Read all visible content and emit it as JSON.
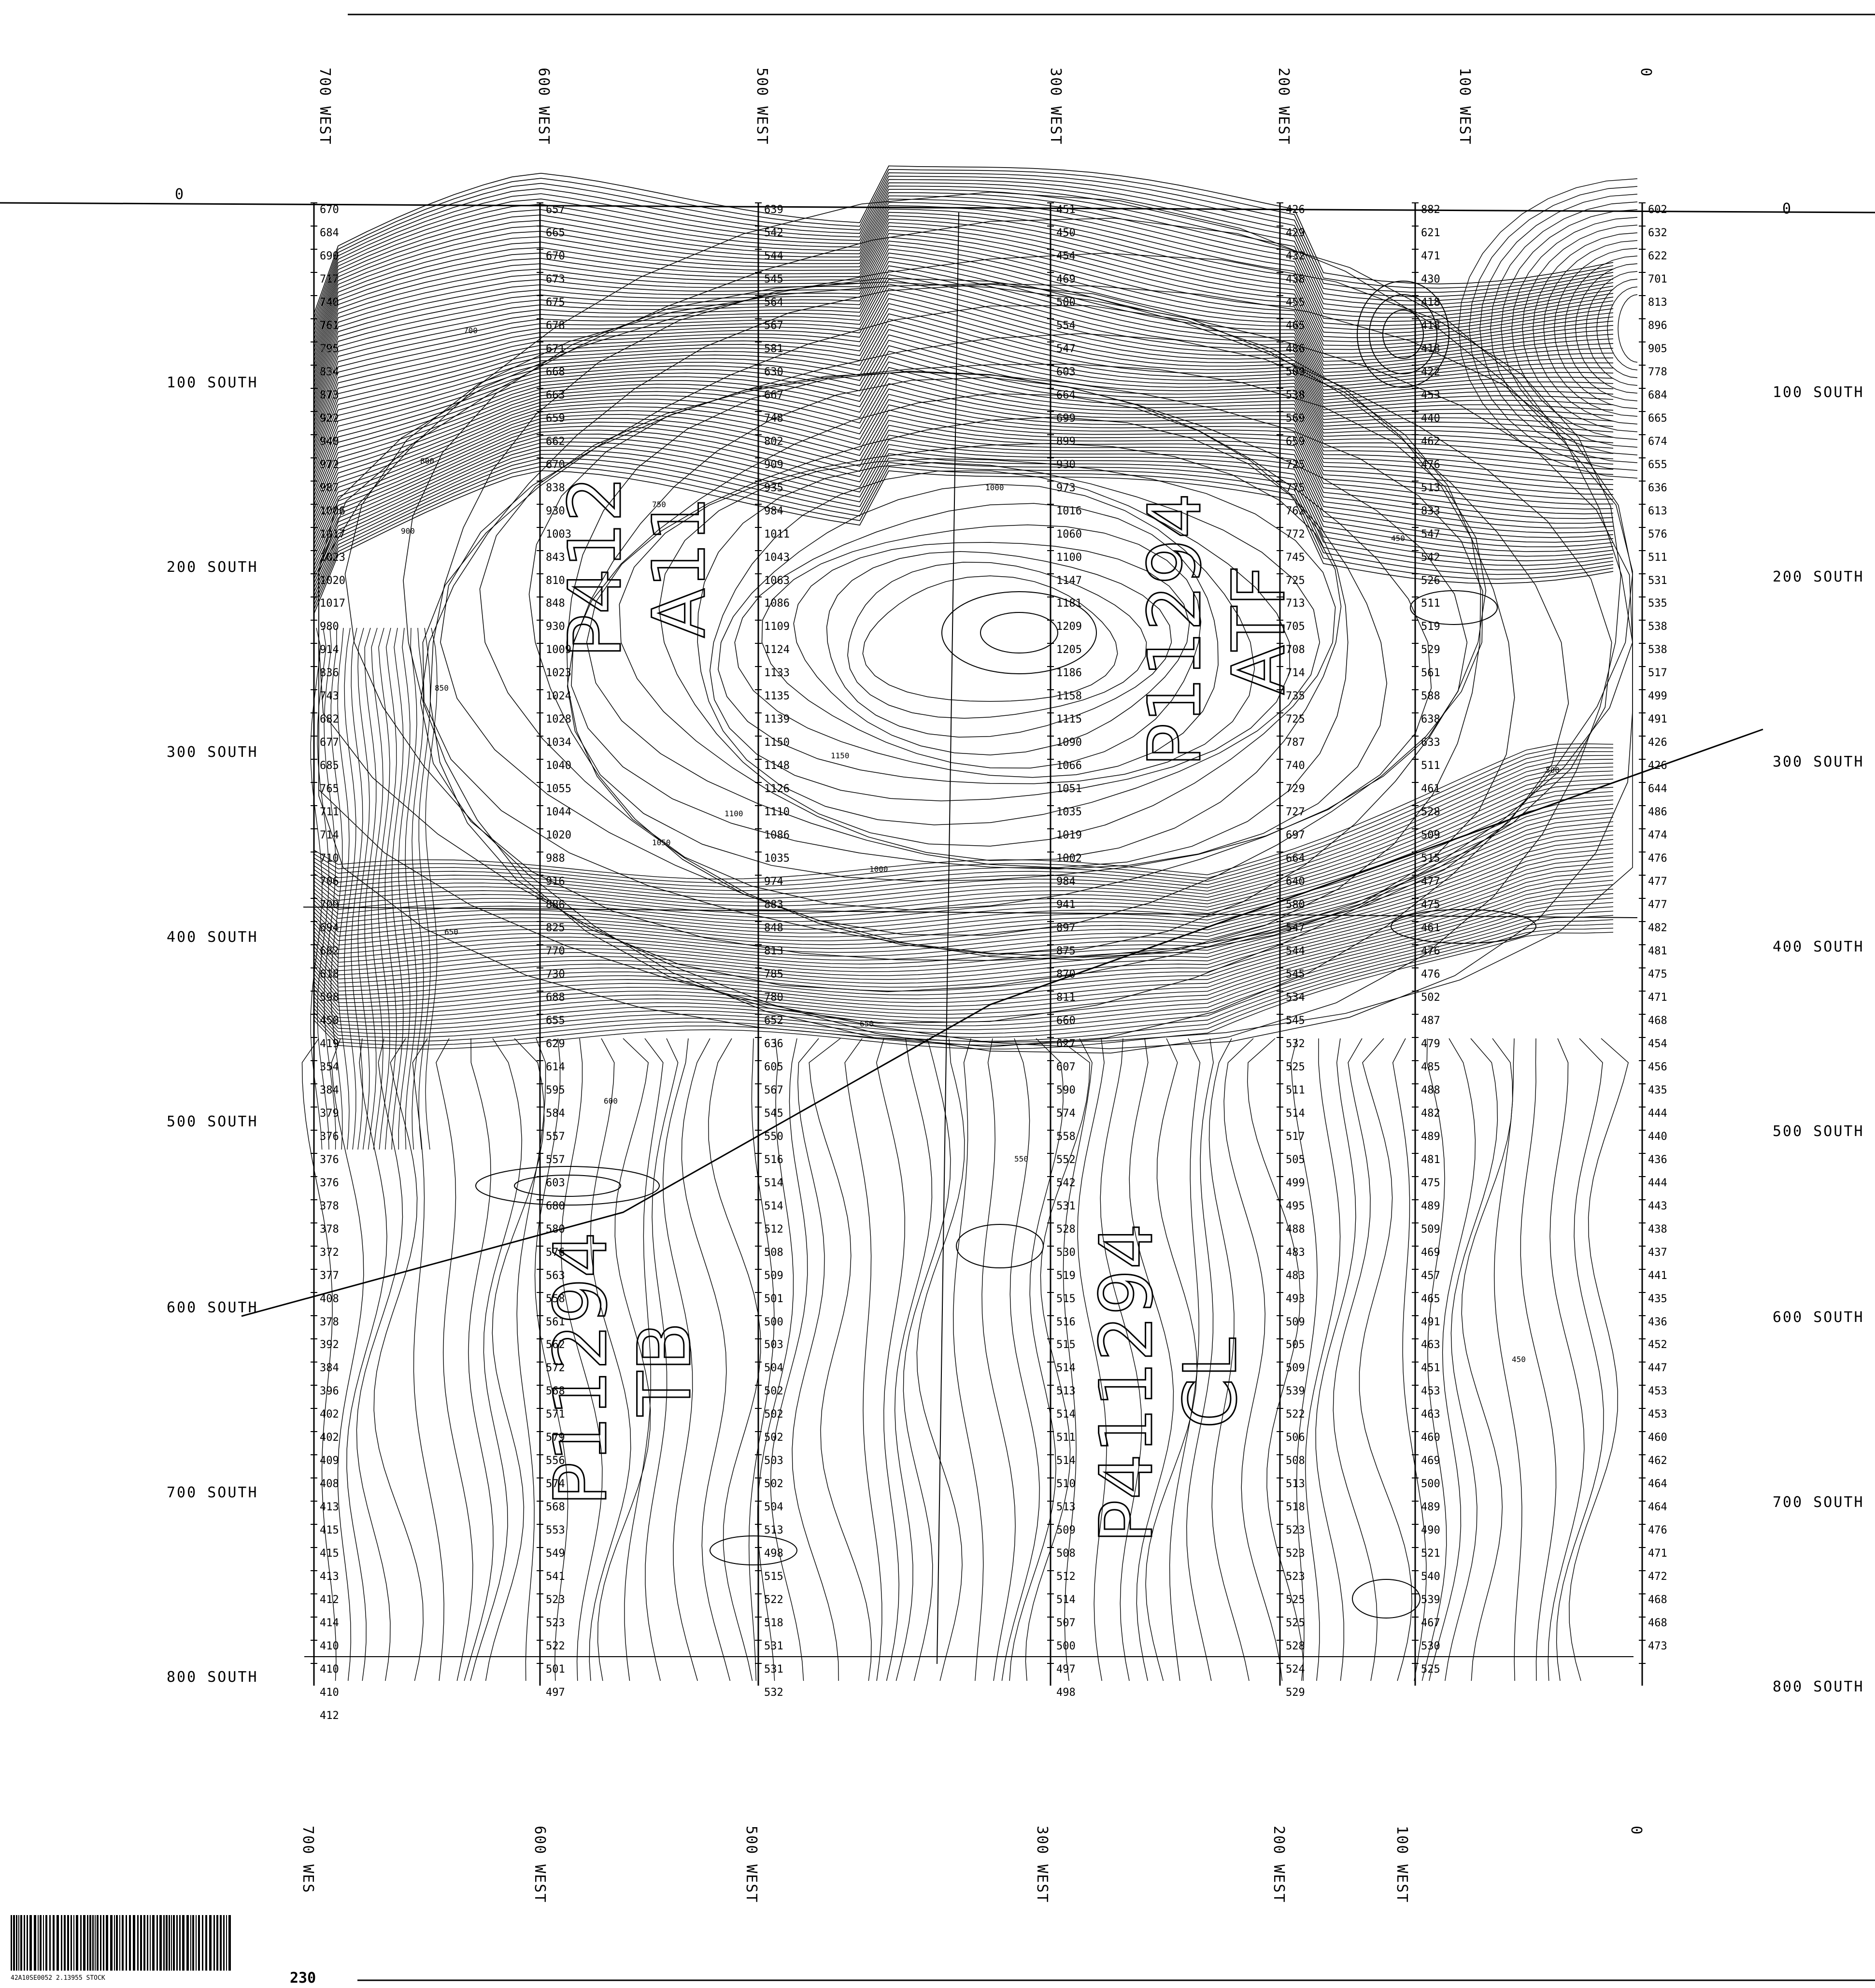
{
  "top_lines": [
    "700 WEST",
    "600 WEST",
    "500 WEST",
    "300 WEST",
    "200 WEST",
    "100 WEST",
    "0"
  ],
  "bottom_lines": [
    "700 WES",
    "600 WEST",
    "500 WEST",
    "300 WEST",
    "200 WEST",
    "100 WEST",
    "0"
  ],
  "left_rows": [
    "0",
    "100 SOUTH",
    "200 SOUTH",
    "300 SOUTH",
    "400 SOUTH",
    "500 SOUTH",
    "600 SOUTH",
    "700 SOUTH",
    "800 SOUTH"
  ],
  "right_rows": [
    "0",
    "100 SOUTH",
    "200 SOUTH",
    "300 SOUTH",
    "400 SOUTH",
    "500 SOUTH",
    "600 SOUTH",
    "700 SOUTH",
    "800 SOUTH"
  ],
  "columns": [
    {
      "line": "700 WEST",
      "readings": [
        "670",
        "684",
        "690",
        "717",
        "740",
        "761",
        "795",
        "834",
        "873",
        "922",
        "940",
        "972",
        "987",
        "1006",
        "1017",
        "1023",
        "1020",
        "1017",
        "980",
        "914",
        "836",
        "743",
        "682",
        "677",
        "685",
        "765",
        "711",
        "714",
        "710",
        "706",
        "709",
        "694",
        "682",
        "618",
        "598",
        "450",
        "419",
        "354",
        "384",
        "379",
        "376",
        "376",
        "376",
        "378",
        "378",
        "372",
        "377",
        "408",
        "378",
        "392",
        "384",
        "396",
        "402",
        "402",
        "409",
        "408",
        "413",
        "415",
        "415",
        "413",
        "412",
        "414",
        "410",
        "410",
        "410",
        "412"
      ]
    },
    {
      "line": "600 WEST",
      "readings": [
        "657",
        "665",
        "670",
        "673",
        "675",
        "678",
        "671",
        "668",
        "663",
        "659",
        "662",
        "670",
        "838",
        "930",
        "1003",
        "843",
        "810",
        "848",
        "930",
        "1009",
        "1023",
        "1024",
        "1028",
        "1034",
        "1040",
        "1055",
        "1044",
        "1020",
        "988",
        "916",
        "886",
        "825",
        "770",
        "730",
        "688",
        "655",
        "629",
        "614",
        "595",
        "584",
        "557",
        "557",
        "603",
        "680",
        "580",
        "576",
        "563",
        "558",
        "561",
        "562",
        "572",
        "568",
        "571",
        "579",
        "556",
        "574",
        "568",
        "553",
        "549",
        "541",
        "523",
        "523",
        "522",
        "501",
        "497"
      ]
    },
    {
      "line": "500 WEST",
      "readings": [
        "639",
        "542",
        "544",
        "545",
        "564",
        "567",
        "581",
        "630",
        "667",
        "748",
        "802",
        "909",
        "935",
        "984",
        "1011",
        "1043",
        "1063",
        "1086",
        "1109",
        "1124",
        "1133",
        "1135",
        "1139",
        "1150",
        "1148",
        "1126",
        "1110",
        "1086",
        "1035",
        "974",
        "883",
        "848",
        "813",
        "785",
        "780",
        "652",
        "636",
        "605",
        "567",
        "545",
        "550",
        "516",
        "514",
        "514",
        "512",
        "508",
        "509",
        "501",
        "500",
        "503",
        "504",
        "502",
        "502",
        "502",
        "503",
        "502",
        "504",
        "513",
        "498",
        "515",
        "522",
        "518",
        "531",
        "531",
        "532"
      ]
    },
    {
      "line": "300 WEST",
      "readings": [
        "451",
        "450",
        "454",
        "469",
        "500",
        "554",
        "547",
        "603",
        "664",
        "699",
        "899",
        "930",
        "973",
        "1016",
        "1060",
        "1100",
        "1147",
        "1181",
        "1209",
        "1205",
        "1186",
        "1158",
        "1115",
        "1090",
        "1066",
        "1051",
        "1035",
        "1019",
        "1002",
        "984",
        "941",
        "897",
        "875",
        "870",
        "811",
        "660",
        "627",
        "607",
        "590",
        "574",
        "558",
        "552",
        "542",
        "531",
        "528",
        "530",
        "519",
        "515",
        "516",
        "515",
        "514",
        "513",
        "514",
        "511",
        "514",
        "510",
        "513",
        "509",
        "508",
        "512",
        "514",
        "507",
        "500",
        "497",
        "498"
      ]
    },
    {
      "line": "200 WEST",
      "readings": [
        "426",
        "429",
        "432",
        "438",
        "455",
        "465",
        "486",
        "509",
        "538",
        "569",
        "659",
        "725",
        "775",
        "762",
        "772",
        "745",
        "725",
        "713",
        "705",
        "708",
        "714",
        "735",
        "725",
        "787",
        "740",
        "729",
        "727",
        "697",
        "664",
        "640",
        "580",
        "547",
        "544",
        "545",
        "534",
        "545",
        "532",
        "525",
        "511",
        "514",
        "517",
        "505",
        "499",
        "495",
        "488",
        "483",
        "483",
        "493",
        "509",
        "505",
        "509",
        "539",
        "522",
        "506",
        "508",
        "513",
        "518",
        "523",
        "523",
        "523",
        "525",
        "525",
        "528",
        "524",
        "529"
      ]
    },
    {
      "line": "100 WEST",
      "readings": [
        "882",
        "621",
        "471",
        "430",
        "418",
        "418",
        "418",
        "422",
        "453",
        "440",
        "462",
        "476",
        "513",
        "833",
        "547",
        "542",
        "526",
        "511",
        "519",
        "529",
        "561",
        "588",
        "638",
        "633",
        "511",
        "461",
        "528",
        "509",
        "515",
        "477",
        "475",
        "461",
        "476",
        "476",
        "502",
        "487",
        "479",
        "485",
        "488",
        "482",
        "489",
        "481",
        "475",
        "489",
        "509",
        "469",
        "457",
        "465",
        "491",
        "463",
        "451",
        "453",
        "463",
        "460",
        "469",
        "500",
        "489",
        "490",
        "521",
        "540",
        "539",
        "467",
        "530",
        "525"
      ]
    },
    {
      "line": "0",
      "readings": [
        "602",
        "632",
        "622",
        "701",
        "813",
        "896",
        "905",
        "778",
        "684",
        "665",
        "674",
        "655",
        "636",
        "613",
        "576",
        "511",
        "531",
        "535",
        "538",
        "538",
        "517",
        "499",
        "491",
        "426",
        "426",
        "644",
        "486",
        "474",
        "476",
        "477",
        "477",
        "482",
        "481",
        "475",
        "471",
        "468",
        "454",
        "456",
        "435",
        "444",
        "440",
        "436",
        "444",
        "443",
        "438",
        "437",
        "441",
        "435",
        "436",
        "452",
        "447",
        "453",
        "453",
        "460",
        "462",
        "464",
        "464",
        "476",
        "471",
        "472",
        "468",
        "468",
        "473"
      ]
    }
  ],
  "contour_labels": [
    "700",
    "750",
    "800",
    "850",
    "900",
    "950",
    "1000",
    "1050",
    "1100",
    "1150",
    "650",
    "600",
    "550",
    "500",
    "450",
    "400",
    "200"
  ],
  "sheet_marks": [
    "P412 A11",
    "P11294 TB",
    "P411294 CL",
    "P11294 ATF"
  ],
  "barcode_text": "42A10SE0052 2.13955 STOCK",
  "page_number": "230"
}
